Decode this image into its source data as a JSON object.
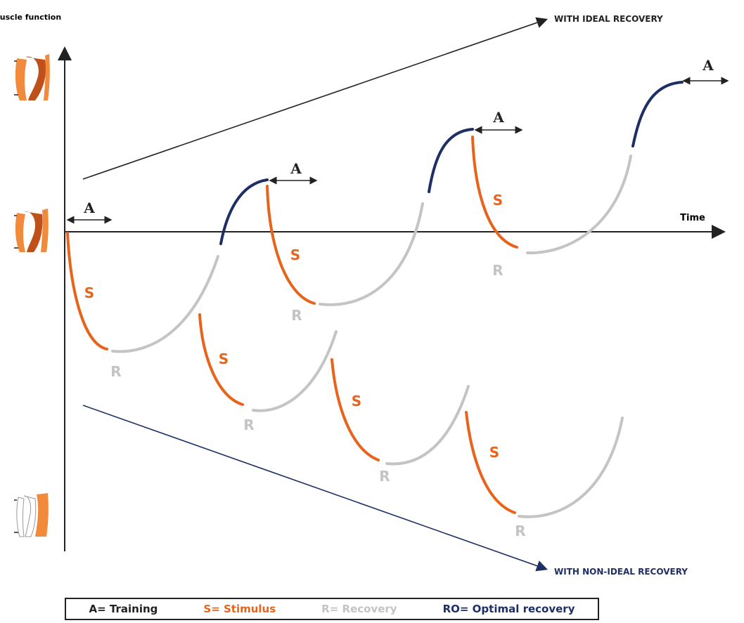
{
  "diagram": {
    "y_axis_label": "Muscle function",
    "x_axis_label": "Time",
    "ideal_label": "WITH IDEAL RECOVERY",
    "non_ideal_label": "WITH NON-IDEAL RECOVERY",
    "letters": {
      "A": "A",
      "S": "S",
      "R": "R"
    }
  },
  "legend": {
    "training": "A= Training",
    "stimulus": "S= Stimulus",
    "recovery": "R= Recovery",
    "optimal": "RO= Optimal recovery"
  },
  "colors": {
    "stimulus": "#e8641c",
    "recovery": "#c4c4c4",
    "optimal": "#1e2f66",
    "axis": "#222222",
    "muscle_dark": "#c0501a",
    "muscle_light": "#f28a3c"
  },
  "icons": [
    "muscle-icon-strong",
    "muscle-icon-normal",
    "muscle-icon-weak"
  ]
}
